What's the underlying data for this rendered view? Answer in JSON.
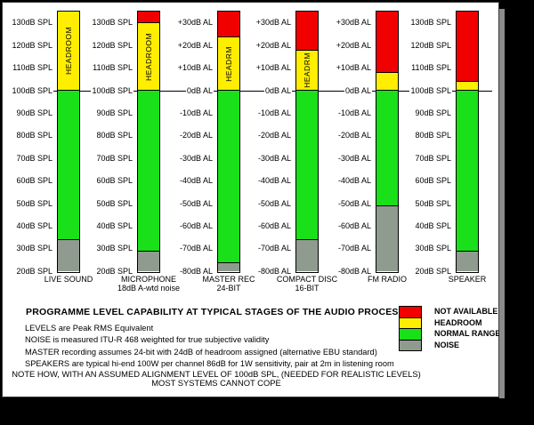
{
  "title": "PROGRAMME LEVEL CAPABILITY AT TYPICAL STAGES OF THE AUDIO PROCESS",
  "notes": [
    "LEVELS are Peak RMS Equivalent",
    "NOISE is measured ITU-R 468 weighted for true subjective validity",
    "MASTER recording assumes 24-bit with 24dB of headroom assigned  (alternative EBU standard)",
    "SPEAKERS are typical hi-end 100W per channel 86dB for 1W sensitivity, pair at 2m in listening room"
  ],
  "footnote": [
    "NOTE HOW, WITH AN ASSUMED ALIGNMENT LEVEL OF 100dB SPL, (NEEDED FOR REALISTIC LEVELS)",
    "MOST SYSTEMS CANNOT COPE"
  ],
  "chart_data": {
    "type": "bar",
    "subtype": "stacked-range-levels",
    "alignment": {
      "al_db": 0,
      "spl_db": 100,
      "note": "0dB AL = 100dB SPL reference line"
    },
    "scale_top_al": 35,
    "scale_bottom_al": -80,
    "spl_tick_labels": [
      "130dB SPL",
      "120dB SPL",
      "110dB SPL",
      "100dB SPL",
      "90dB SPL",
      "80dB SPL",
      "70dB SPL",
      "60dB SPL",
      "50dB SPL",
      "40dB SPL",
      "30dB SPL",
      "20dB SPL"
    ],
    "al_tick_labels": [
      "+30dB AL",
      "+20dB AL",
      "+10dB AL",
      "0dB AL",
      "-10dB AL",
      "-20dB AL",
      "-30dB AL",
      "-40dB AL",
      "-50dB AL",
      "-60dB AL",
      "-70dB AL",
      "-80dB AL"
    ],
    "colors": {
      "not_available": "#f10000",
      "headroom": "#ffee00",
      "normal_range": "#19e019",
      "noise": "#8f9b8f"
    },
    "legend": [
      {
        "type": "not_available",
        "label": "NOT AVAILABLE"
      },
      {
        "type": "headroom",
        "label": "HEADROOM"
      },
      {
        "type": "normal_range",
        "label": "NORMAL RANGE"
      },
      {
        "type": "noise",
        "label": "NOISE"
      }
    ],
    "columns": [
      {
        "id": "live-sound",
        "caption": [
          "LIVE SOUND"
        ],
        "scale": "SPL",
        "segments": [
          {
            "type": "headroom",
            "from_al": 35,
            "to_al": 0,
            "label": "HEADROOM"
          },
          {
            "type": "normal_range",
            "from_al": 0,
            "to_al": -66
          },
          {
            "type": "noise",
            "from_al": -66,
            "to_al": -80
          }
        ]
      },
      {
        "id": "microphone",
        "caption": [
          "MICROPHONE",
          "18dB A-wtd noise"
        ],
        "scale": "SPL",
        "segments": [
          {
            "type": "not_available",
            "from_al": 35,
            "to_al": 30
          },
          {
            "type": "headroom",
            "from_al": 30,
            "to_al": 0,
            "label": "HEADROOM"
          },
          {
            "type": "normal_range",
            "from_al": 0,
            "to_al": -71
          },
          {
            "type": "noise",
            "from_al": -71,
            "to_al": -80
          }
        ]
      },
      {
        "id": "master-rec",
        "caption": [
          "MASTER REC",
          "24-BIT"
        ],
        "scale": "AL",
        "segments": [
          {
            "type": "not_available",
            "from_al": 35,
            "to_al": 24
          },
          {
            "type": "headroom",
            "from_al": 24,
            "to_al": 0,
            "label": "HEADRM"
          },
          {
            "type": "normal_range",
            "from_al": 0,
            "to_al": -76
          },
          {
            "type": "noise",
            "from_al": -76,
            "to_al": -80
          }
        ]
      },
      {
        "id": "compact-disc",
        "caption": [
          "COMPACT DISC",
          "16-BIT"
        ],
        "scale": "AL",
        "segments": [
          {
            "type": "not_available",
            "from_al": 35,
            "to_al": 18
          },
          {
            "type": "headroom",
            "from_al": 18,
            "to_al": 0,
            "label": "HEADRM"
          },
          {
            "type": "normal_range",
            "from_al": 0,
            "to_al": -66
          },
          {
            "type": "noise",
            "from_al": -66,
            "to_al": -80
          }
        ]
      },
      {
        "id": "fm-radio",
        "caption": [
          "FM RADIO"
        ],
        "scale": "AL",
        "segments": [
          {
            "type": "not_available",
            "from_al": 35,
            "to_al": 8
          },
          {
            "type": "headroom",
            "from_al": 8,
            "to_al": 0
          },
          {
            "type": "normal_range",
            "from_al": 0,
            "to_al": -51
          },
          {
            "type": "noise",
            "from_al": -51,
            "to_al": -80
          }
        ]
      },
      {
        "id": "speaker",
        "caption": [
          "SPEAKER"
        ],
        "scale": "SPL",
        "segments": [
          {
            "type": "not_available",
            "from_al": 35,
            "to_al": 4
          },
          {
            "type": "headroom",
            "from_al": 4,
            "to_al": 0
          },
          {
            "type": "normal_range",
            "from_al": 0,
            "to_al": -71
          },
          {
            "type": "noise",
            "from_al": -71,
            "to_al": -80
          }
        ]
      }
    ]
  }
}
